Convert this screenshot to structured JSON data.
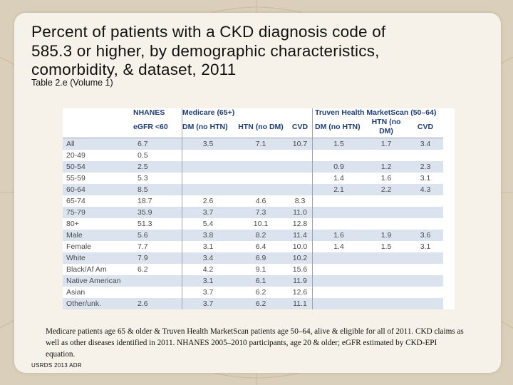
{
  "title": "Percent of patients with a CKD diagnosis code of 585.3 or higher, by demographic characteristics, comorbidity, & dataset, 2011",
  "subtitle": "Table 2.e (Volume 1)",
  "table": {
    "group_headers": {
      "nhanes": "NHANES",
      "medicare": "Medicare (65+)",
      "truven": "Truven Health MarketScan (50–64)"
    },
    "sub_headers": {
      "egfr": "eGFR <60",
      "med_dm": "DM (no HTN)",
      "med_htn": "HTN (no DM)",
      "med_cvd": "CVD",
      "tr_dm": "DM (no HTN)",
      "tr_htn": "HTN (no DM)",
      "tr_cvd": "CVD"
    },
    "rows": [
      {
        "label": "All",
        "nhanes": "6.7",
        "med_dm": "3.5",
        "med_htn": "7.1",
        "med_cvd": "10.7",
        "tr_dm": "1.5",
        "tr_htn": "1.7",
        "tr_cvd": "3.4"
      },
      {
        "label": "20-49",
        "nhanes": "0.5",
        "med_dm": "",
        "med_htn": "",
        "med_cvd": "",
        "tr_dm": "",
        "tr_htn": "",
        "tr_cvd": ""
      },
      {
        "label": "50-54",
        "nhanes": "2.5",
        "med_dm": "",
        "med_htn": "",
        "med_cvd": "",
        "tr_dm": "0.9",
        "tr_htn": "1.2",
        "tr_cvd": "2.3"
      },
      {
        "label": "55-59",
        "nhanes": "5.3",
        "med_dm": "",
        "med_htn": "",
        "med_cvd": "",
        "tr_dm": "1.4",
        "tr_htn": "1.6",
        "tr_cvd": "3.1"
      },
      {
        "label": "60-64",
        "nhanes": "8.5",
        "med_dm": "",
        "med_htn": "",
        "med_cvd": "",
        "tr_dm": "2.1",
        "tr_htn": "2.2",
        "tr_cvd": "4.3"
      },
      {
        "label": "65-74",
        "nhanes": "18.7",
        "med_dm": "2.6",
        "med_htn": "4.6",
        "med_cvd": "8.3",
        "tr_dm": "",
        "tr_htn": "",
        "tr_cvd": ""
      },
      {
        "label": "75-79",
        "nhanes": "35.9",
        "med_dm": "3.7",
        "med_htn": "7.3",
        "med_cvd": "11.0",
        "tr_dm": "",
        "tr_htn": "",
        "tr_cvd": ""
      },
      {
        "label": "80+",
        "nhanes": "51.3",
        "med_dm": "5.4",
        "med_htn": "10.1",
        "med_cvd": "12.8",
        "tr_dm": "",
        "tr_htn": "",
        "tr_cvd": ""
      },
      {
        "label": "Male",
        "nhanes": "5.6",
        "med_dm": "3.8",
        "med_htn": "8.2",
        "med_cvd": "11.4",
        "tr_dm": "1.6",
        "tr_htn": "1.9",
        "tr_cvd": "3.6"
      },
      {
        "label": "Female",
        "nhanes": "7.7",
        "med_dm": "3.1",
        "med_htn": "6.4",
        "med_cvd": "10.0",
        "tr_dm": "1.4",
        "tr_htn": "1.5",
        "tr_cvd": "3.1"
      },
      {
        "label": "White",
        "nhanes": "7.9",
        "med_dm": "3.4",
        "med_htn": "6.9",
        "med_cvd": "10.2",
        "tr_dm": "",
        "tr_htn": "",
        "tr_cvd": ""
      },
      {
        "label": "Black/Af Am",
        "nhanes": "6.2",
        "med_dm": "4.2",
        "med_htn": "9.1",
        "med_cvd": "15.6",
        "tr_dm": "",
        "tr_htn": "",
        "tr_cvd": ""
      },
      {
        "label": "Native American",
        "nhanes": "",
        "med_dm": "3.1",
        "med_htn": "6.1",
        "med_cvd": "11.9",
        "tr_dm": "",
        "tr_htn": "",
        "tr_cvd": ""
      },
      {
        "label": "Asian",
        "nhanes": "",
        "med_dm": "3.7",
        "med_htn": "6.2",
        "med_cvd": "12.6",
        "tr_dm": "",
        "tr_htn": "",
        "tr_cvd": ""
      },
      {
        "label": "Other/unk.",
        "nhanes": "2.6",
        "med_dm": "3.7",
        "med_htn": "6.2",
        "med_cvd": "11.1",
        "tr_dm": "",
        "tr_htn": "",
        "tr_cvd": ""
      }
    ]
  },
  "footnote": "Medicare patients age 65 & older & Truven Health MarketScan patients age 50–64, alive & eligible for all of 2011. CKD claims as well as other diseases identified in 2011. NHANES 2005–2010 participants, age 20 & older; eGFR estimated by CKD-EPI equation.",
  "source": "USRDS 2013 ADR",
  "colors": {
    "header_blue": "#1f3e7a",
    "row_stripe": "#dbe3ef",
    "panel": "#f6f2e9",
    "background": "#d9cfba"
  }
}
